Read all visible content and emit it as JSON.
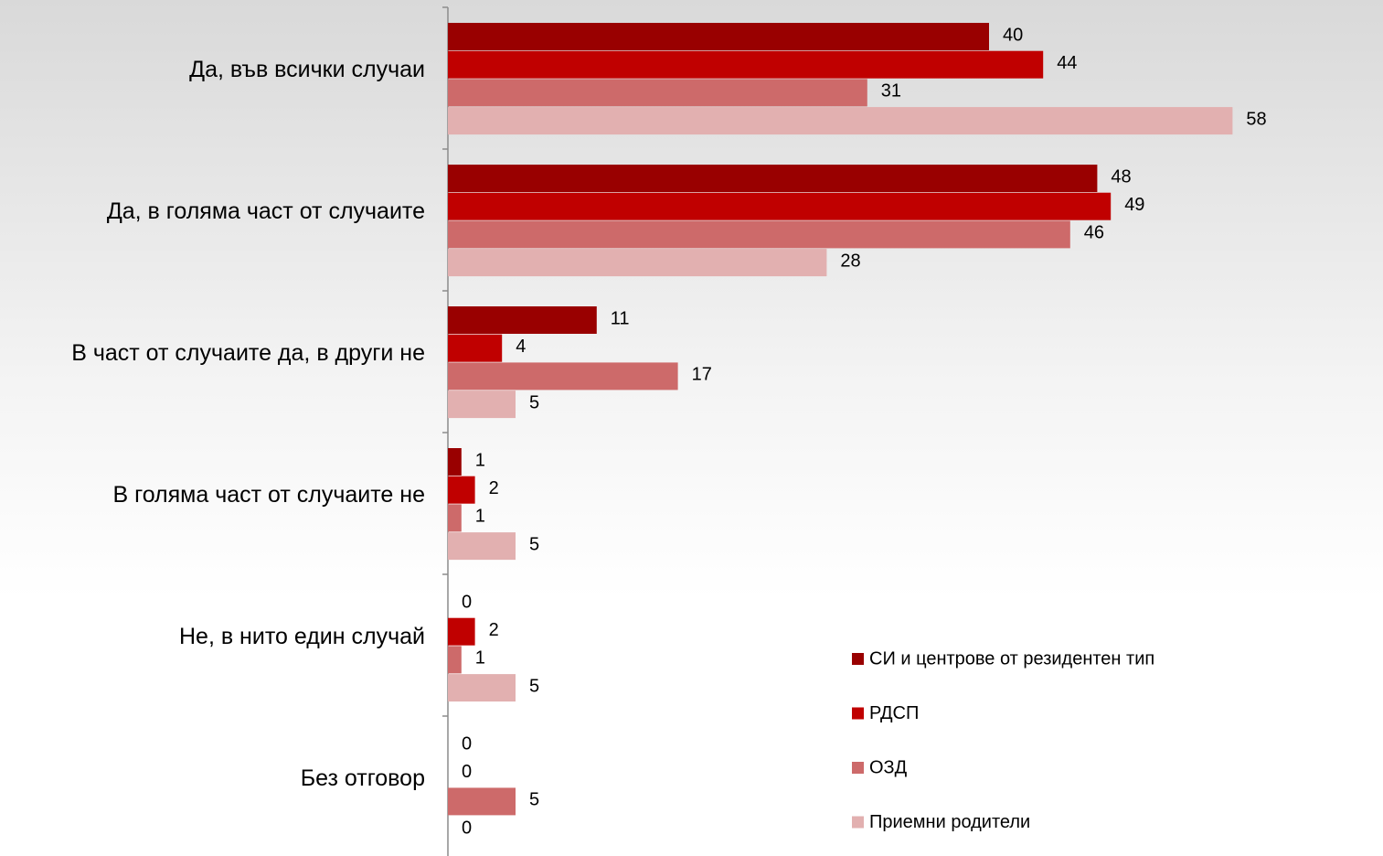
{
  "chart_data": {
    "type": "hbar",
    "categories": [
      "Да, във всички случаи",
      "Да, в голяма част от случаите",
      "В част от случаите да, в други не",
      "В голяма част от случаите не",
      "Не, в нито един случай",
      "Без отговор"
    ],
    "series": [
      {
        "name": "СИ и центрове от резидентен тип",
        "color": "#990000",
        "values": [
          40,
          48,
          11,
          1,
          0,
          0
        ]
      },
      {
        "name": "РДСП",
        "color": "#c00000",
        "values": [
          44,
          49,
          4,
          2,
          2,
          0
        ]
      },
      {
        "name": "ОЗД",
        "color": "#cd6a6a",
        "values": [
          31,
          46,
          17,
          1,
          1,
          5
        ]
      },
      {
        "name": "Приемни родители",
        "color": "#e2b0b0",
        "values": [
          58,
          28,
          5,
          5,
          5,
          0
        ]
      }
    ],
    "xlim": [
      0,
      60
    ],
    "legend": "lower right"
  }
}
